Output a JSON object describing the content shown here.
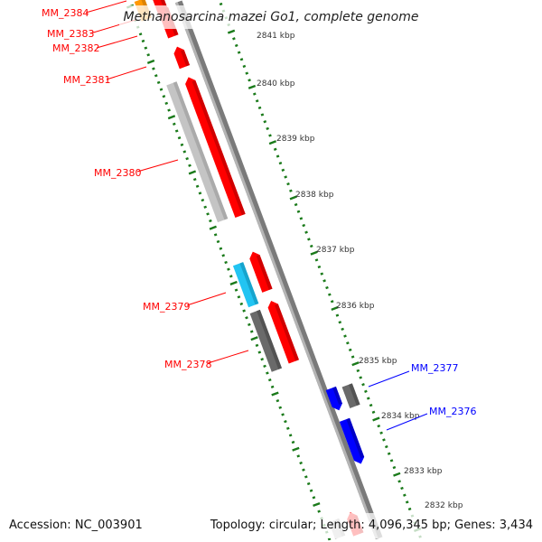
{
  "title": "Methanosarcina mazei Go1, complete genome",
  "footer": {
    "accession": "Accession: NC_003901",
    "summary": "Topology: circular; Length: 4,096,345 bp; Genes: 3,434"
  },
  "genes": [
    {
      "label": "MM_2384",
      "color": "#ff0000"
    },
    {
      "label": "MM_2383",
      "color": "#ff0000"
    },
    {
      "label": "MM_2382",
      "color": "#ff0000"
    },
    {
      "label": "MM_2381",
      "color": "#ff0000"
    },
    {
      "label": "MM_2380",
      "color": "#ff0000"
    },
    {
      "label": "MM_2379",
      "color": "#ff0000"
    },
    {
      "label": "MM_2378",
      "color": "#ff0000"
    },
    {
      "label": "MM_2377",
      "color": "#0000ff"
    },
    {
      "label": "MM_2376",
      "color": "#0000ff"
    }
  ],
  "ruler": [
    "2841 kbp",
    "2840 kbp",
    "2839 kbp",
    "2838 kbp",
    "2837 kbp",
    "2836 kbp",
    "2835 kbp",
    "2834 kbp",
    "2833 kbp",
    "2832 kbp"
  ],
  "colors": {
    "forward": "#ff0000",
    "reverse": "#0000ff",
    "tick": "#1a7a1a",
    "backbone": "#888888"
  }
}
